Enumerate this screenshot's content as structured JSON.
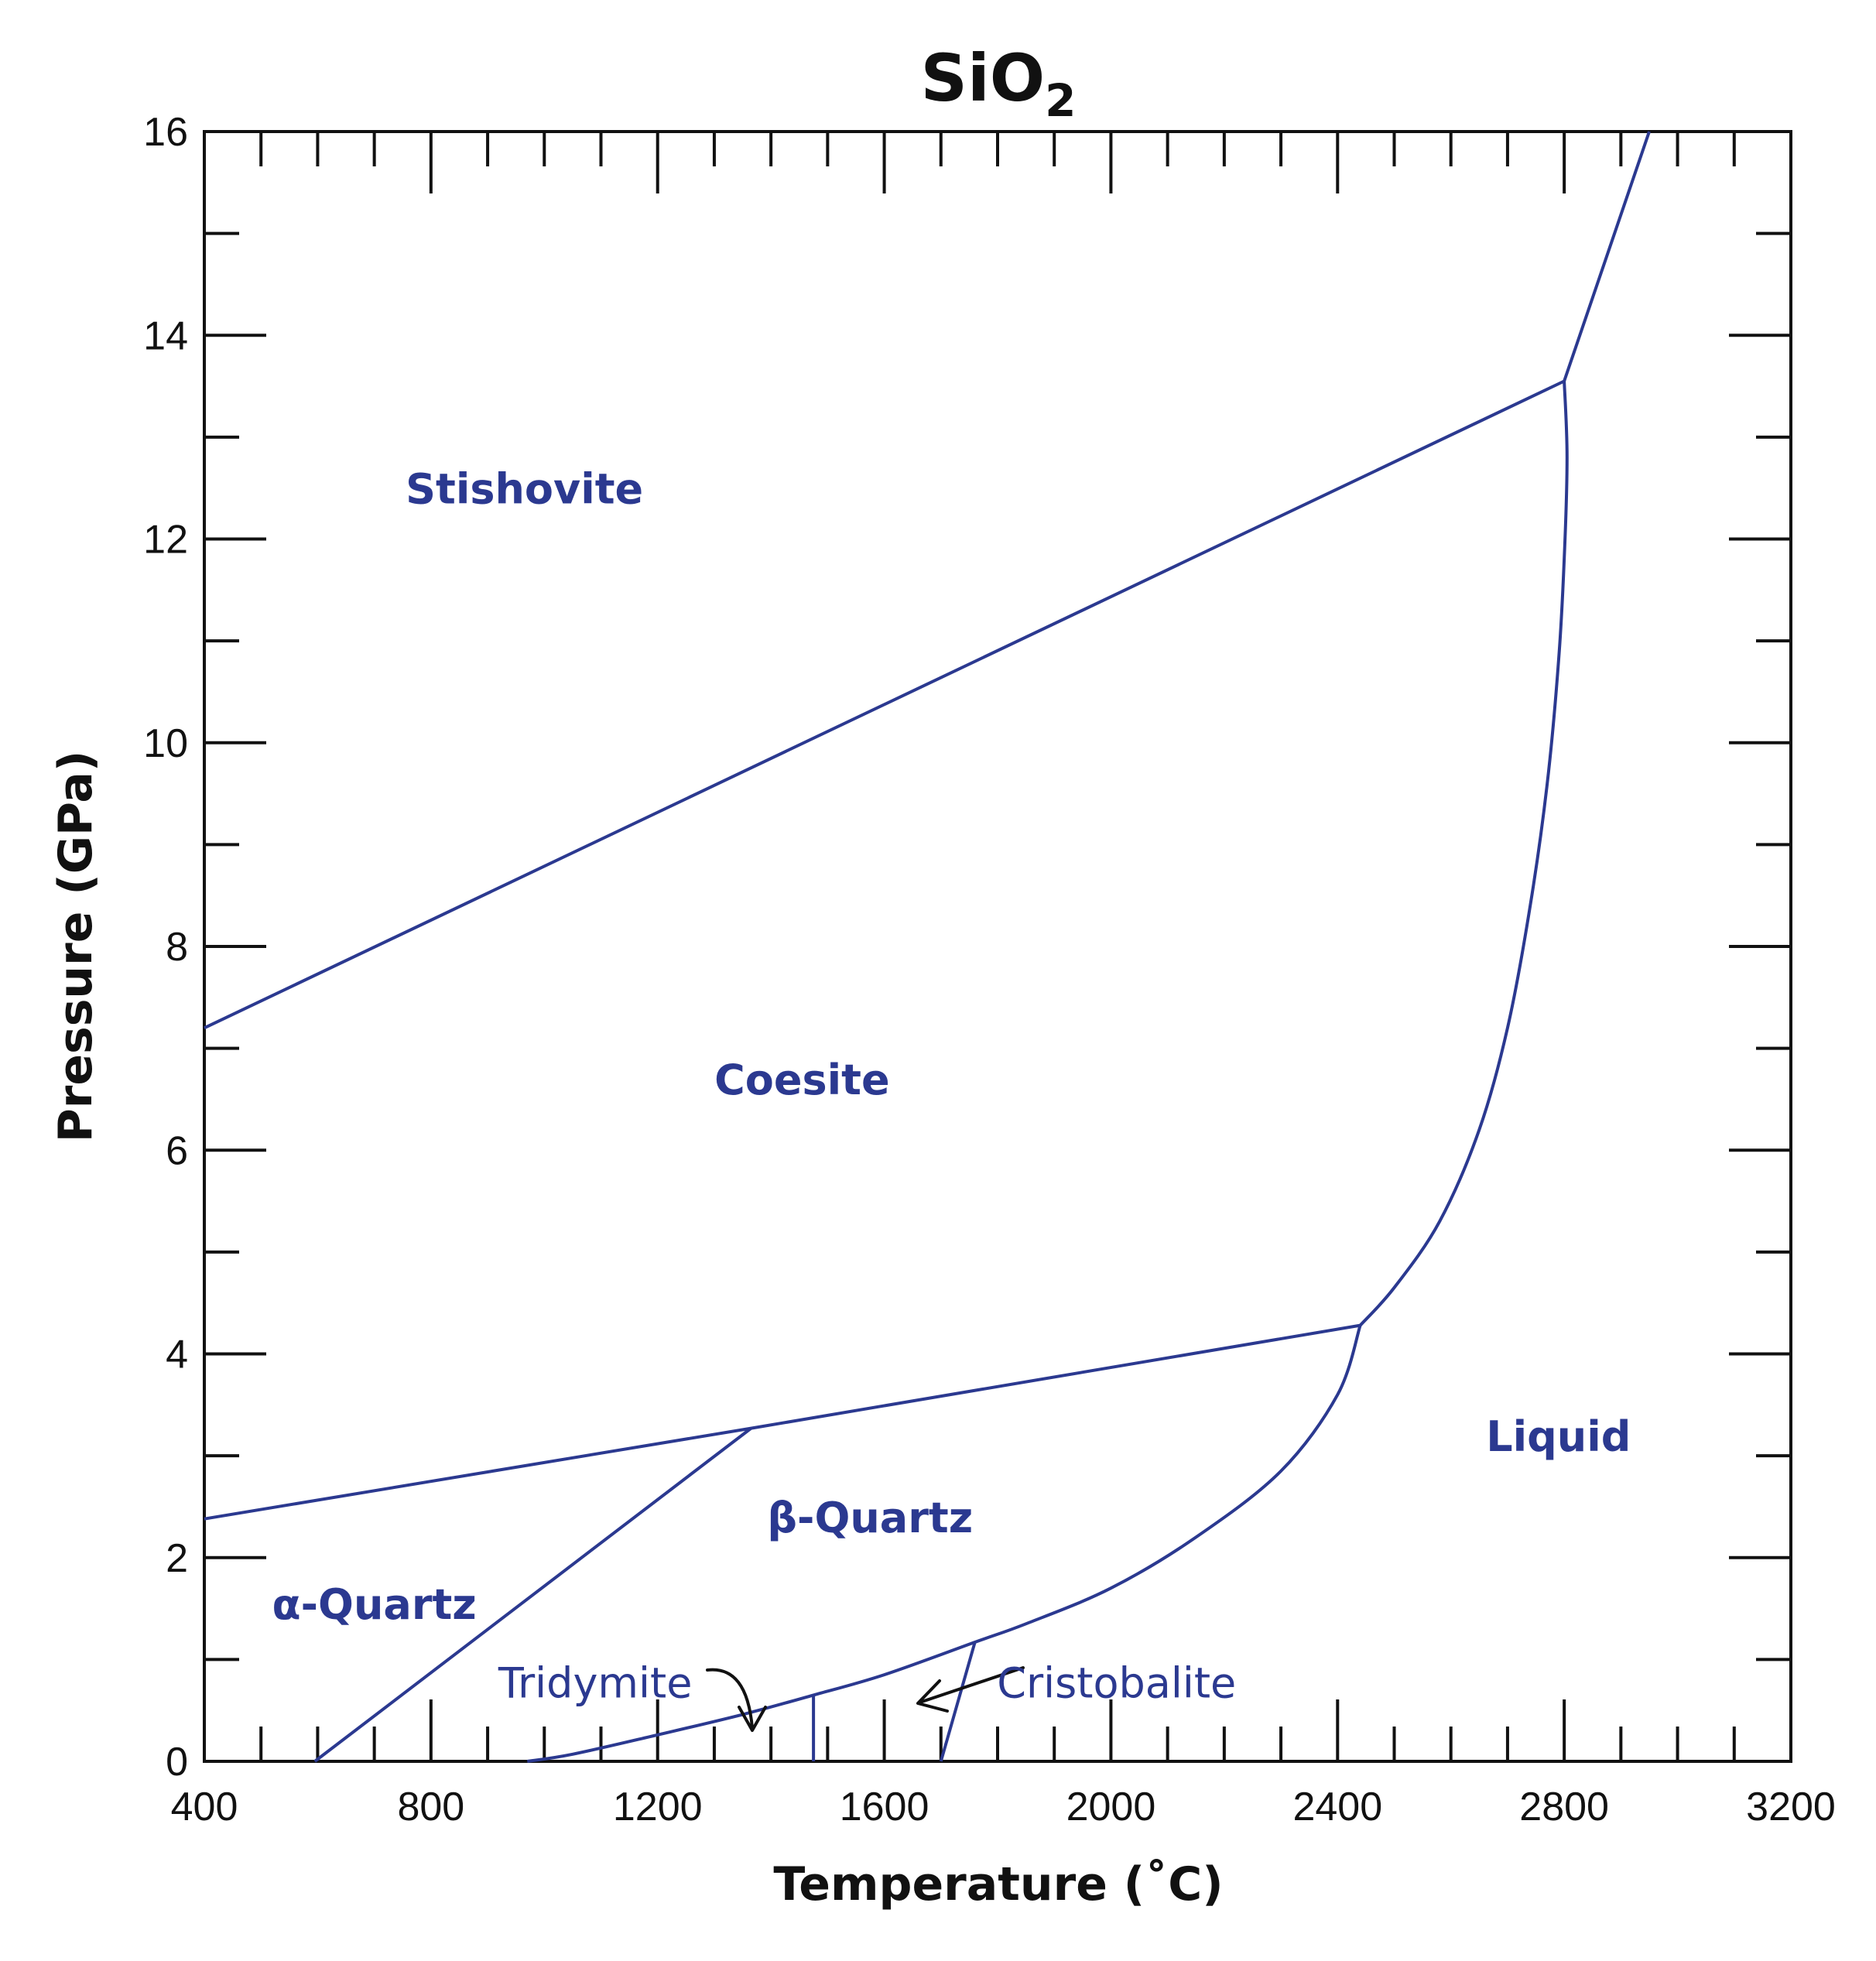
{
  "chart_data": {
    "type": "line",
    "title": "SiO",
    "title_subscript": "2",
    "xlabel": "Temperature (˚C)",
    "ylabel": "Pressure (GPa)",
    "xlim": [
      400,
      3200
    ],
    "ylim": [
      0,
      16
    ],
    "x_ticks": [
      400,
      800,
      1200,
      1600,
      2000,
      2400,
      2800,
      3200
    ],
    "x_tick_labels": [
      "400",
      "800",
      "1200",
      "1600",
      "2000",
      "2400",
      "2800",
      "3200"
    ],
    "x_minor_step": 100,
    "y_ticks": [
      0,
      2,
      4,
      6,
      8,
      10,
      12,
      14,
      16
    ],
    "y_tick_labels": [
      "0",
      "2",
      "4",
      "6",
      "8",
      "10",
      "12",
      "14",
      "16"
    ],
    "y_minor_step": 1,
    "grid": false,
    "line_color": "#2b3990",
    "series": [
      {
        "x": [
          400,
          2800
        ],
        "y": [
          7.2,
          13.55
        ]
      },
      {
        "x": [
          2800,
          2950
        ],
        "y": [
          13.55,
          16.0
        ]
      },
      {
        "x": [
          2800,
          2805,
          2800,
          2790,
          2770,
          2740,
          2700,
          2650,
          2580,
          2500,
          2440
        ],
        "y": [
          13.55,
          12.8,
          11.8,
          10.8,
          9.6,
          8.4,
          7.2,
          6.2,
          5.3,
          4.65,
          4.28
        ]
      },
      {
        "x": [
          400,
          1365,
          2440
        ],
        "y": [
          2.38,
          3.27,
          4.28
        ]
      },
      {
        "x": [
          1365,
          595
        ],
        "y": [
          3.27,
          0
        ]
      },
      {
        "x": [
          2440,
          2400,
          2300,
          2150,
          2000,
          1850,
          1760,
          1600,
          1475,
          1350,
          1200,
          1050,
          970
        ],
        "y": [
          4.28,
          3.6,
          2.85,
          2.2,
          1.7,
          1.35,
          1.17,
          0.85,
          0.65,
          0.46,
          0.26,
          0.07,
          0
        ]
      },
      {
        "x": [
          1475,
          1475
        ],
        "y": [
          0.65,
          0
        ]
      },
      {
        "x": [
          1760,
          1700
        ],
        "y": [
          1.17,
          0
        ]
      }
    ],
    "region_labels": [
      {
        "text": "Stishovite",
        "x": 965,
        "y": 12.5
      },
      {
        "text": "Coesite",
        "x": 1455,
        "y": 6.7
      },
      {
        "text": "β-Quartz",
        "x": 1575,
        "y": 2.4
      },
      {
        "text": "α-Quartz",
        "x": 700,
        "y": 1.55
      },
      {
        "text": "Liquid",
        "x": 2790,
        "y": 3.2
      }
    ],
    "annotations": [
      {
        "text": "Tridymite",
        "x": 1090,
        "y": 0.78
      },
      {
        "text": "Cristobalite",
        "x": 2010,
        "y": 0.78
      }
    ]
  }
}
